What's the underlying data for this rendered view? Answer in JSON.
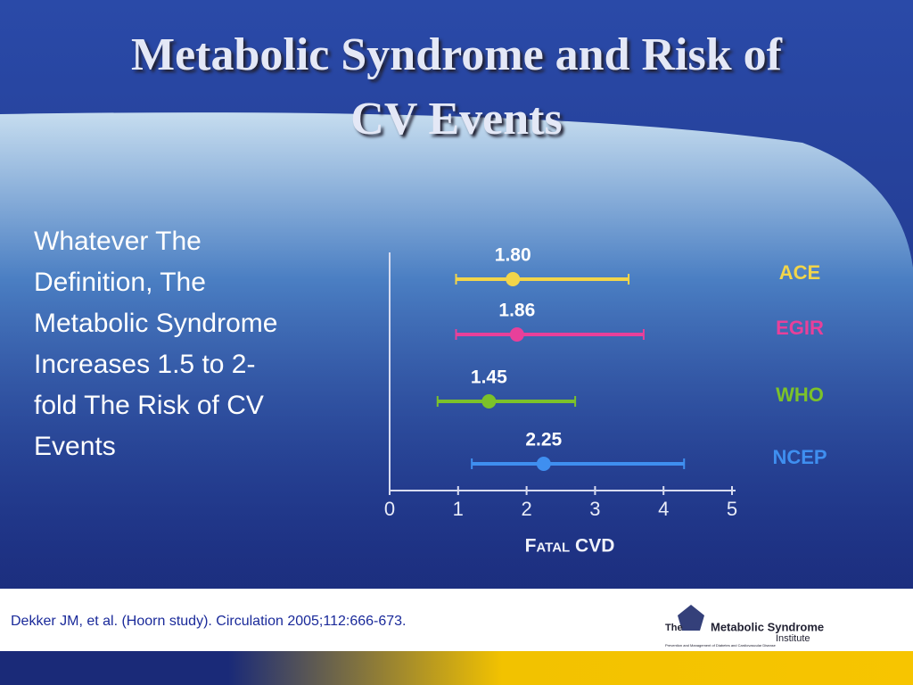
{
  "slide": {
    "title_lines": [
      "Metabolic Syndrome and Risk of",
      "CV Events"
    ],
    "body_lines": [
      "Whatever The",
      "Definition, The",
      "Metabolic Syndrome",
      "Increases 1.5 to 2-",
      "fold The Risk of CV",
      "Events"
    ],
    "citation": "Dekker JM, et al. (Hoorn study). Circulation 2005;112:666-673.",
    "logo": {
      "the": "The",
      "name": "Metabolic Syndrome",
      "institute": "Institute",
      "tagline": "Prevention and Management of Diabetes and Cardiovascular Disease"
    }
  },
  "chart_data": {
    "type": "forest",
    "categories": [
      "ACE",
      "EGIR",
      "WHO",
      "NCEP"
    ],
    "values": [
      1.8,
      1.86,
      1.45,
      2.25
    ],
    "value_labels": [
      "1.80",
      "1.86",
      "1.45",
      "2.25"
    ],
    "lower": [
      0.97,
      0.97,
      0.7,
      1.2
    ],
    "upper": [
      3.49,
      3.71,
      2.71,
      4.3
    ],
    "colors": [
      "#f2d54a",
      "#e8409a",
      "#7cc22a",
      "#3f8ff0"
    ],
    "xlabel": "Fatal CVD",
    "xlim": [
      0,
      5
    ],
    "xticks": [
      0,
      1,
      2,
      3,
      4,
      5
    ]
  }
}
